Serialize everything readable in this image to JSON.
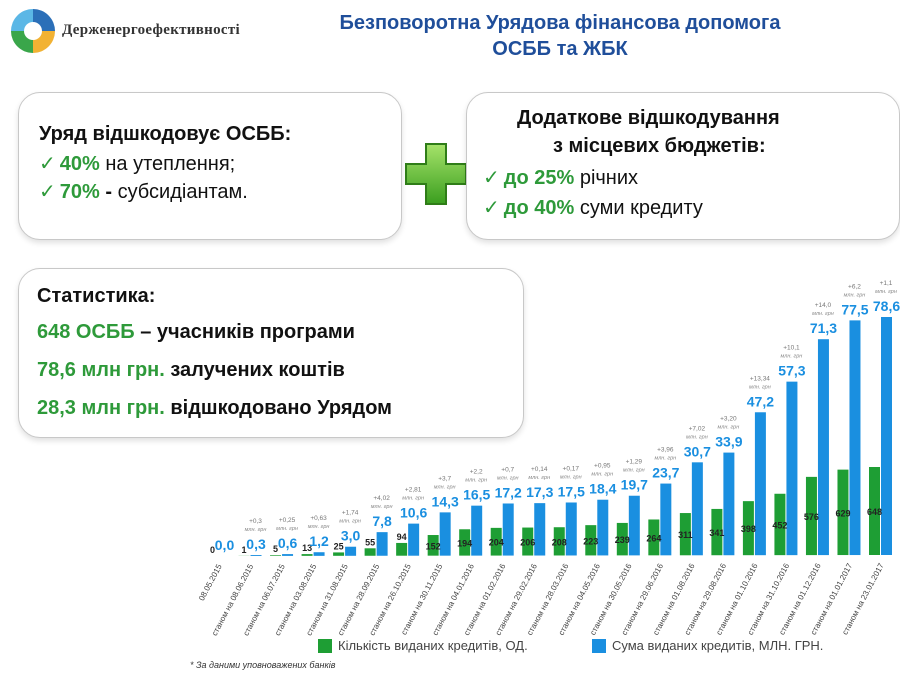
{
  "header": {
    "logo_text": "Держенергоефективності",
    "title_line1": "Безповоротна Урядова фінансова допомога",
    "title_line2": "ОСББ та ЖБК"
  },
  "gov_box": {
    "heading": "Уряд відшкодовує ОСББ:",
    "item1_value": "40%",
    "item1_text": " на утеплення;",
    "item2_value": "70%",
    "item2_dash": " - ",
    "item2_text": "субсидіантам."
  },
  "local_box": {
    "heading1": "Додаткове відшкодування",
    "heading2": "з місцевих бюджетів:",
    "item1_value": "до 25%",
    "item1_text": " річних",
    "item2_value": "до 40%",
    "item2_text": " суми кредиту"
  },
  "stats_box": {
    "heading": "Статистика:",
    "line1_value": "648 ОСББ",
    "line1_text": " – учасників програми",
    "line2_value": "78,6 млн грн.",
    "line2_text": " залучених коштів",
    "line3_value": "28,3 млн грн.",
    "line3_text": " відшкодовано Урядом"
  },
  "colors": {
    "green": "#1e9e34",
    "blue": "#1a8fe0",
    "title": "#1f4e9a"
  },
  "chart_data": {
    "type": "bar",
    "categories": [
      "08.05.2015",
      "станом на 08.06.2015",
      "станом на 06.07.2015",
      "станом на 03.08.2015",
      "станом на 31.08.2015",
      "станом на 28.09.2015",
      "станом на 26.10.2015",
      "станом на 30.11.2015",
      "станом на 04.01.2016",
      "станом на 01.02.2016",
      "станом на 29.02.2016",
      "станом на 28.03.2016",
      "станом на 04.05.2016",
      "станом на 30.05.2016",
      "станом на 29.06.2016",
      "станом на 01.08.2016",
      "станом на 29.08.2016",
      "станом на 01.10.2016",
      "станом на 31.10.2016",
      "станом на 01.12.2016",
      "станом на 01.01.2017",
      "станом на 23.01.2017"
    ],
    "series": [
      {
        "name": "Кількість виданих кредитів, ОД.",
        "values": [
          0,
          1,
          5,
          13,
          25,
          55,
          94,
          152,
          194,
          204,
          206,
          208,
          223,
          239,
          264,
          311,
          341,
          398,
          452,
          576,
          629,
          648
        ],
        "labels": [
          "0",
          "1",
          "5",
          "13",
          "25",
          "55",
          "94",
          "152",
          "194",
          "204",
          "206",
          "208",
          "223",
          "239",
          "264",
          "311",
          "341",
          "398",
          "452",
          "576",
          "629",
          "648"
        ]
      },
      {
        "name": "Сума виданих кредитів, МЛН. ГРН.",
        "values": [
          0.0,
          0.3,
          0.6,
          1.2,
          3.0,
          7.8,
          10.6,
          14.3,
          16.5,
          17.2,
          17.3,
          17.5,
          18.4,
          19.7,
          23.7,
          30.7,
          33.9,
          47.2,
          57.3,
          71.3,
          77.5,
          78.6
        ],
        "labels": [
          "0,0",
          "0,3",
          "0,6",
          "1,2",
          "3,0",
          "7,8",
          "10,6",
          "14,3",
          "16,5",
          "17,2",
          "17,3",
          "17,5",
          "18,4",
          "19,7",
          "23,7",
          "30,7",
          "33,9",
          "47,2",
          "57,3",
          "71,3",
          "77,5",
          "78,6"
        ]
      }
    ],
    "increments": [
      "",
      "+0,3",
      "+0,25",
      "+0,63",
      "+1,74",
      "+4,02",
      "+2,81",
      "+3,7",
      "+2,2",
      "+0,7",
      "+0,14",
      "+0,17",
      "+0,95",
      "+1,29",
      "+3,96",
      "+7,02",
      "+3,20",
      "+13,34",
      "+10,1",
      "+14,0",
      "+6,2",
      "+1,1"
    ],
    "increment_unit_line1": "млн. грн",
    "increment_unit_line2": "",
    "footnote": "* За даними уповноважених банків"
  }
}
